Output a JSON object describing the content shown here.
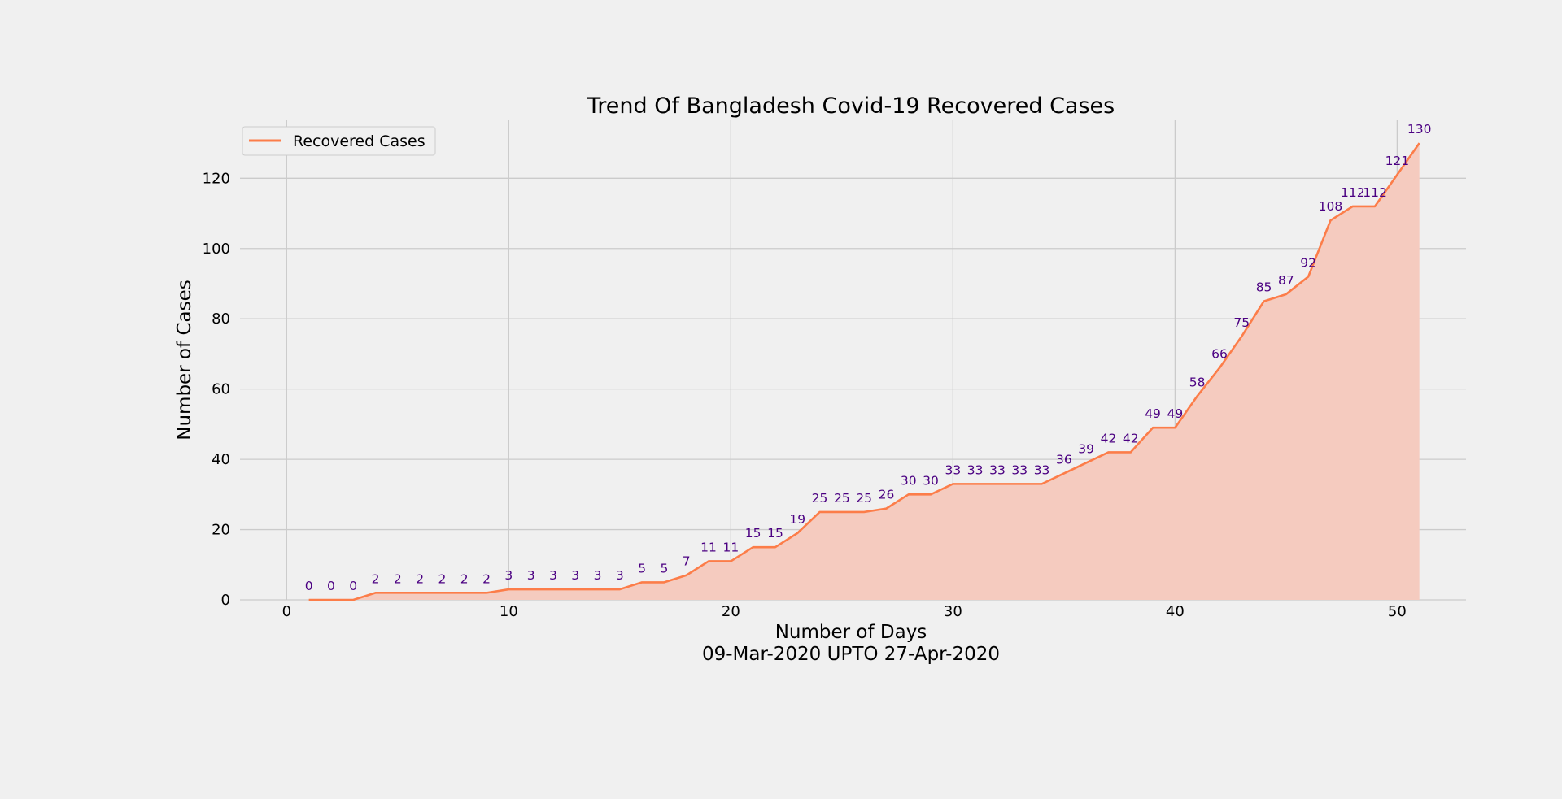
{
  "chart_data": {
    "type": "area",
    "title": "Trend Of Bangladesh Covid-19 Recovered Cases",
    "xlabel": "Number of Days",
    "xlabel_sub": "09-Mar-2020 UPTO 27-Apr-2020",
    "ylabel": "Number of Cases",
    "x_ticks": [
      0,
      10,
      20,
      30,
      40,
      50
    ],
    "y_ticks": [
      0,
      20,
      40,
      60,
      80,
      100,
      120
    ],
    "xlim": [
      -2.1,
      53.1
    ],
    "ylim": [
      0,
      136.5
    ],
    "grid": true,
    "legend_position": "top-left",
    "series": [
      {
        "name": "Recovered Cases",
        "color": "#fc7d49",
        "fill_color": "#f5cbbf",
        "x": [
          1,
          2,
          3,
          4,
          5,
          6,
          7,
          8,
          9,
          10,
          11,
          12,
          13,
          14,
          15,
          16,
          17,
          18,
          19,
          20,
          21,
          22,
          23,
          24,
          25,
          26,
          27,
          28,
          29,
          30,
          31,
          32,
          33,
          34,
          35,
          36,
          37,
          38,
          39,
          40,
          41,
          42,
          43,
          44,
          45,
          46,
          47,
          48,
          49,
          50,
          51
        ],
        "values": [
          0,
          0,
          0,
          2,
          2,
          2,
          2,
          2,
          2,
          3,
          3,
          3,
          3,
          3,
          3,
          5,
          5,
          7,
          11,
          11,
          15,
          15,
          19,
          25,
          25,
          25,
          26,
          30,
          30,
          33,
          33,
          33,
          33,
          33,
          36,
          39,
          42,
          42,
          49,
          49,
          58,
          66,
          75,
          85,
          87,
          92,
          108,
          112,
          112,
          121,
          130
        ]
      }
    ]
  }
}
